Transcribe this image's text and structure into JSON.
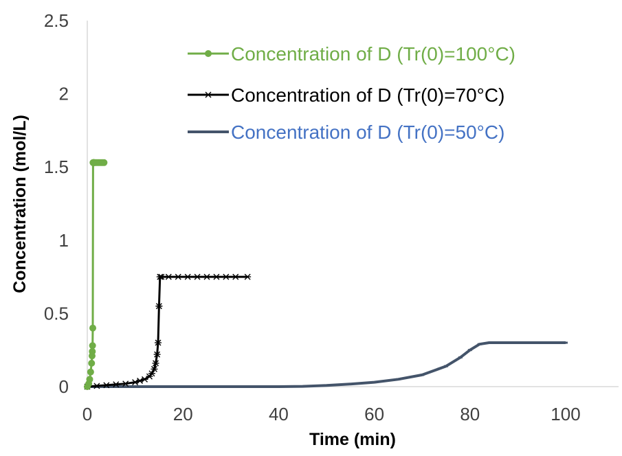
{
  "chart_data": {
    "type": "line",
    "xlabel": "Time (min)",
    "ylabel": "Concentration (mol/L)",
    "xlim": [
      0,
      110
    ],
    "ylim": [
      0,
      2.5
    ],
    "x_ticks": [
      "0",
      "20",
      "40",
      "60",
      "80",
      "100"
    ],
    "y_ticks": [
      "0",
      "0.5",
      "1",
      "1.5",
      "2",
      "2.5"
    ],
    "grid": false,
    "legend_position": "top-right",
    "series": [
      {
        "name": "Concentration of D (Tr(0)=100°C)",
        "color": "#70AD47",
        "marker": "circle",
        "x": [
          0,
          0.3,
          0.5,
          0.7,
          0.9,
          1.0,
          1.05,
          1.1,
          1.15,
          1.2,
          1.25,
          1.3,
          1.35,
          1.4,
          1.5,
          1.7,
          2.0,
          2.3,
          2.6,
          2.9,
          3.2,
          3.5
        ],
        "y": [
          0,
          0.02,
          0.05,
          0.1,
          0.16,
          0.21,
          0.24,
          0.28,
          0.4,
          1.53,
          1.53,
          1.53,
          1.53,
          1.53,
          1.53,
          1.53,
          1.53,
          1.53,
          1.53,
          1.53,
          1.53,
          1.53
        ]
      },
      {
        "name": "Concentration of D (Tr(0)=70°C)",
        "color": "#000000",
        "marker": "star",
        "x": [
          0,
          2,
          4,
          6,
          8,
          10,
          11,
          12,
          13,
          13.5,
          14,
          14.3,
          14.6,
          14.8,
          15.0,
          15.2,
          15.5,
          17,
          19,
          21,
          23,
          25,
          27,
          29,
          31,
          33.5
        ],
        "y": [
          0,
          0.005,
          0.01,
          0.015,
          0.02,
          0.03,
          0.04,
          0.05,
          0.07,
          0.09,
          0.12,
          0.16,
          0.22,
          0.3,
          0.55,
          0.75,
          0.75,
          0.75,
          0.75,
          0.75,
          0.75,
          0.75,
          0.75,
          0.75,
          0.75,
          0.75
        ]
      },
      {
        "name": "Concentration of D (Tr(0)=50°C)",
        "color": "#44546A",
        "marker": "dash",
        "x": [
          0,
          10,
          20,
          30,
          40,
          45,
          50,
          55,
          60,
          65,
          70,
          75,
          78,
          80,
          82,
          84,
          86,
          90,
          95,
          100
        ],
        "y": [
          0,
          0,
          0,
          0,
          0,
          0.002,
          0.008,
          0.018,
          0.03,
          0.05,
          0.08,
          0.14,
          0.2,
          0.25,
          0.29,
          0.3,
          0.3,
          0.3,
          0.3,
          0.3
        ]
      }
    ]
  },
  "legend_text_colors": [
    "#70AD47",
    "#000000",
    "#4472C4"
  ]
}
